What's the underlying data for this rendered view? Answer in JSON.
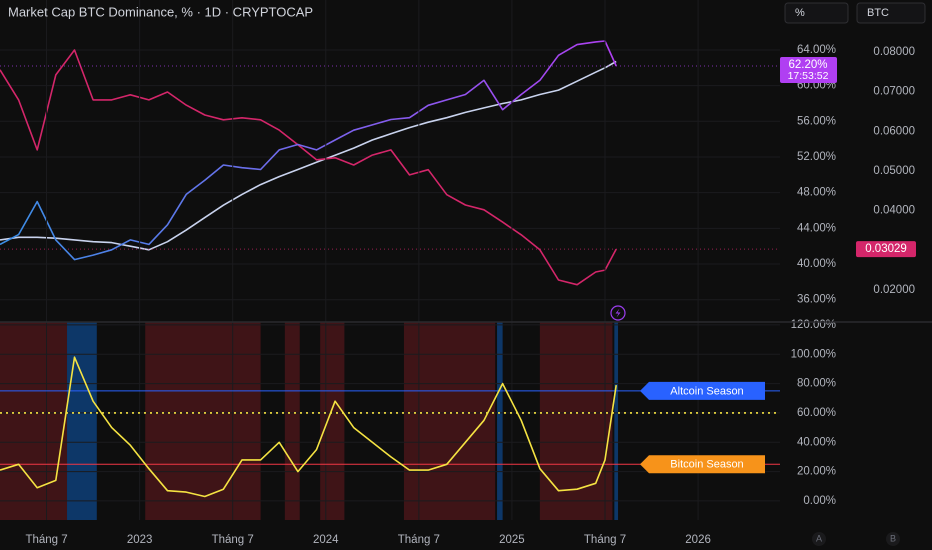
{
  "toolbar": {
    "buttons": [
      "%",
      "BTC"
    ]
  },
  "scale_buttons": [
    "A",
    "B"
  ],
  "chart_data": [
    {
      "type": "line",
      "title": "Market Cap BTC Dominance, % · 1D · CRYPTOCAP",
      "x": [
        2022.25,
        2022.35,
        2022.45,
        2022.55,
        2022.65,
        2022.75,
        2022.85,
        2022.95,
        2023.05,
        2023.15,
        2023.25,
        2023.35,
        2023.45,
        2023.55,
        2023.65,
        2023.75,
        2023.85,
        2023.95,
        2024.05,
        2024.15,
        2024.25,
        2024.35,
        2024.45,
        2024.55,
        2024.65,
        2024.75,
        2024.85,
        2024.95,
        2025.05,
        2025.15,
        2025.25,
        2025.35,
        2025.45,
        2025.5,
        2025.56
      ],
      "xlim": [
        2022.25,
        2026.44
      ],
      "ylim": [
        33.5,
        69.6
      ],
      "yticks": [
        {
          "value": 36,
          "label": "36.00%"
        },
        {
          "value": 40,
          "label": "40.00%"
        },
        {
          "value": 44,
          "label": "44.00%"
        },
        {
          "value": 48,
          "label": "48.00%"
        },
        {
          "value": 52,
          "label": "52.00%"
        },
        {
          "value": 56,
          "label": "56.00%"
        },
        {
          "value": 60,
          "label": "60.00%"
        },
        {
          "value": 64,
          "label": "64.00%"
        }
      ],
      "y2lim": [
        0.0119,
        0.0931
      ],
      "y2ticks": [
        {
          "value": 0.02,
          "label": "0.02000"
        },
        {
          "value": 0.03,
          "label": "0.03000"
        },
        {
          "value": 0.04,
          "label": "0.04000"
        },
        {
          "value": 0.05,
          "label": "0.05000"
        },
        {
          "value": 0.06,
          "label": "0.06000"
        },
        {
          "value": 0.07,
          "label": "0.07000"
        },
        {
          "value": 0.08,
          "label": "0.08000"
        }
      ],
      "grid": true,
      "series": [
        {
          "color": "#c9d3ee",
          "values": [
            42.7,
            43.0,
            43.0,
            42.9,
            42.7,
            42.5,
            42.4,
            42.0,
            41.6,
            42.5,
            43.8,
            45.2,
            46.6,
            47.8,
            48.9,
            49.8,
            50.6,
            51.4,
            52.2,
            53.0,
            53.9,
            54.6,
            55.3,
            55.9,
            56.4,
            57.0,
            57.5,
            58.0,
            58.4,
            59.0,
            59.5,
            60.5,
            61.5,
            62.0,
            62.7
          ]
        },
        {
          "color": "#d4266a",
          "axis": "y2",
          "values": [
            0.0755,
            0.0679,
            0.0553,
            0.0742,
            0.0805,
            0.0679,
            0.0679,
            0.0692,
            0.0679,
            0.0699,
            0.0666,
            0.0641,
            0.0629,
            0.0634,
            0.0629,
            0.0603,
            0.0566,
            0.0528,
            0.0533,
            0.0515,
            0.054,
            0.0553,
            0.049,
            0.0503,
            0.044,
            0.0414,
            0.0402,
            0.0371,
            0.0339,
            0.0301,
            0.0225,
            0.0213,
            0.0245,
            0.025,
            0.03029
          ],
          "last_marker": true
        },
        {
          "color": "#b03ff2",
          "gradient_start": "#3b8fe6",
          "values": [
            42.2,
            43.3,
            47,
            42.7,
            40.5,
            41.0,
            41.6,
            42.7,
            42.2,
            44.4,
            47.8,
            49.4,
            51.1,
            50.8,
            50.6,
            52.8,
            53.4,
            52.8,
            53.9,
            55.0,
            55.6,
            56.2,
            56.4,
            57.8,
            58.4,
            59.0,
            60.6,
            57.3,
            59.0,
            60.6,
            63.4,
            64.6,
            64.9,
            65.0,
            62.2
          ],
          "last_label": "62.20%",
          "timer": "17:53:52"
        }
      ]
    },
    {
      "type": "line",
      "x": [
        2022.25,
        2022.35,
        2022.45,
        2022.55,
        2022.65,
        2022.75,
        2022.85,
        2022.95,
        2023.05,
        2023.15,
        2023.25,
        2023.35,
        2023.45,
        2023.55,
        2023.65,
        2023.75,
        2023.85,
        2023.95,
        2024.05,
        2024.15,
        2024.25,
        2024.35,
        2024.45,
        2024.55,
        2024.65,
        2024.75,
        2024.85,
        2024.95,
        2025.05,
        2025.15,
        2025.25,
        2025.35,
        2025.45,
        2025.5,
        2025.56
      ],
      "xlim": [
        2022.25,
        2026.44
      ],
      "xticks": [
        {
          "value": 2022.5,
          "label": "Tháng 7"
        },
        2023,
        {
          "value": 2023.5,
          "label": "Tháng 7"
        },
        2024,
        {
          "value": 2024.5,
          "label": "Tháng 7"
        },
        2025,
        {
          "value": 2025.5,
          "label": "Tháng 7"
        },
        2026
      ],
      "ylim": [
        -13,
        122
      ],
      "yticks": [
        {
          "value": 0,
          "label": "0.00%"
        },
        {
          "value": 20,
          "label": "20.00%"
        },
        {
          "value": 40,
          "label": "40.00%"
        },
        {
          "value": 60,
          "label": "60.00%"
        },
        {
          "value": 80,
          "label": "80.00%"
        },
        {
          "value": 100,
          "label": "100.00%"
        },
        {
          "value": 120,
          "label": "120.00%"
        }
      ],
      "grid": true,
      "bands": [
        {
          "start": 2022.25,
          "end": 2022.61,
          "color": "#3f1417"
        },
        {
          "start": 2022.61,
          "end": 2022.77,
          "color": "#0d3768"
        },
        {
          "start": 2023.03,
          "end": 2023.65,
          "color": "#3f1417"
        },
        {
          "start": 2023.78,
          "end": 2023.86,
          "color": "#3f1417"
        },
        {
          "start": 2023.97,
          "end": 2024.1,
          "color": "#3f1417"
        },
        {
          "start": 2024.42,
          "end": 2024.91,
          "color": "#3f1417"
        },
        {
          "start": 2024.92,
          "end": 2024.95,
          "color": "#0d3768"
        },
        {
          "start": 2025.15,
          "end": 2025.54,
          "color": "#3f1417"
        },
        {
          "start": 2025.55,
          "end": 2025.57,
          "color": "#0d3768"
        }
      ],
      "reference_lines": [
        {
          "value": 75,
          "label": "Altcoin Season",
          "color": "#2962ff",
          "label_color": "#2962ff"
        },
        {
          "value": 25,
          "label": "Bitcoin Season",
          "color": "#f23645",
          "label_color": "#f7931a"
        },
        {
          "value": 60,
          "color": "#f5e342",
          "style": "dotted"
        }
      ],
      "series": [
        {
          "color": "#f5e342",
          "values": [
            21,
            25,
            9,
            14,
            98,
            68,
            50,
            38,
            22,
            7,
            6,
            3,
            8,
            28,
            28,
            40,
            20,
            35,
            68,
            50,
            40,
            30,
            21,
            21,
            25,
            40,
            55,
            80,
            55,
            22,
            7,
            8,
            12,
            28,
            79
          ]
        }
      ]
    }
  ]
}
